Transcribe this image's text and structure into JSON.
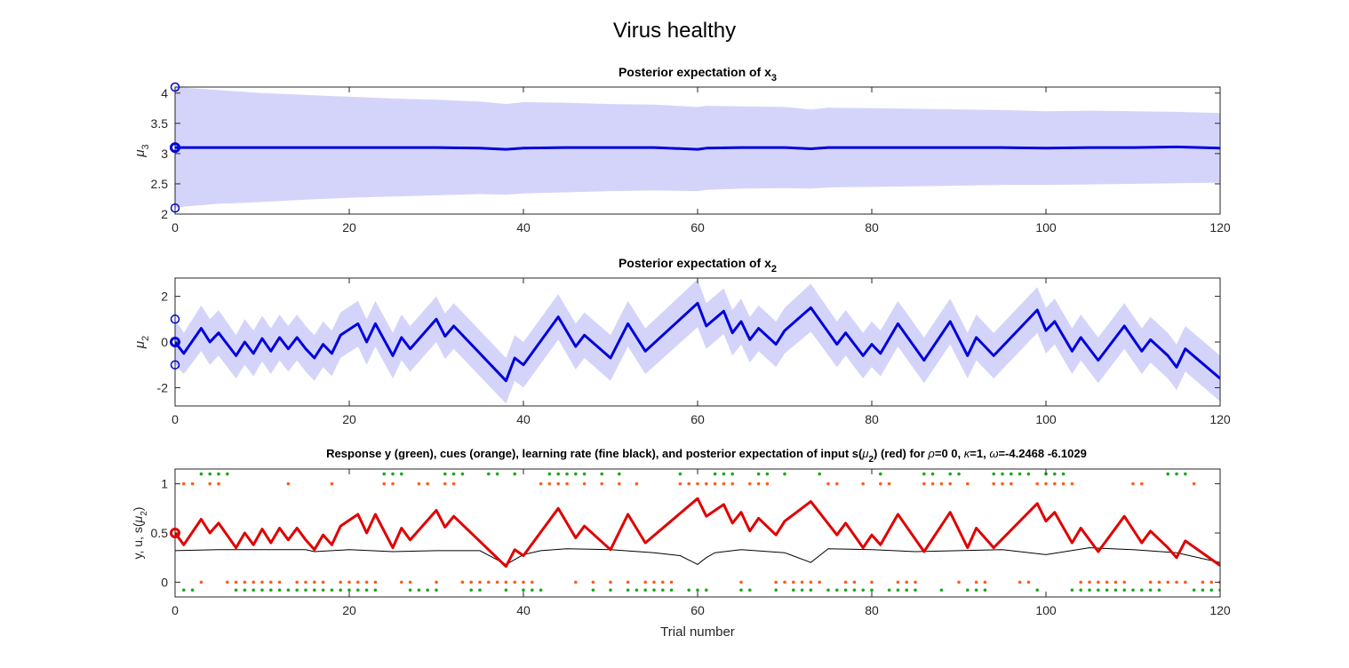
{
  "figure": {
    "title": "Virus healthy"
  },
  "colors": {
    "mean": "#0000dd",
    "band": "#d4d4fb",
    "prediction": "#e00000",
    "learning_rate": "#000000",
    "response": "#1aa81a",
    "cue": "#ff5a1a",
    "axis": "#262626"
  },
  "chart_data": [
    {
      "type": "area",
      "title_main": "Posterior expectation of x",
      "title_sub": "3",
      "ylabel_main": "μ",
      "ylabel_sub": "3",
      "xlim": [
        0,
        120
      ],
      "ylim": [
        2,
        4.1
      ],
      "xticks": [
        0,
        20,
        40,
        60,
        80,
        100,
        120
      ],
      "yticks": [
        2,
        2.5,
        3,
        3.5,
        4
      ],
      "yticklabels": [
        "2",
        "2.5",
        "3",
        "3.5",
        "4"
      ],
      "grid": false,
      "x": [
        0,
        5,
        10,
        15,
        20,
        25,
        30,
        35,
        38,
        40,
        45,
        50,
        55,
        60,
        61,
        65,
        70,
        73,
        75,
        80,
        85,
        90,
        95,
        100,
        105,
        110,
        115,
        120
      ],
      "mean": [
        3.1,
        3.1,
        3.1,
        3.1,
        3.1,
        3.1,
        3.1,
        3.09,
        3.07,
        3.09,
        3.1,
        3.1,
        3.1,
        3.07,
        3.09,
        3.1,
        3.1,
        3.08,
        3.1,
        3.1,
        3.1,
        3.1,
        3.1,
        3.09,
        3.1,
        3.1,
        3.11,
        3.09
      ],
      "band_upper": [
        4.1,
        4.05,
        4.0,
        3.97,
        3.94,
        3.91,
        3.89,
        3.86,
        3.82,
        3.85,
        3.84,
        3.82,
        3.81,
        3.77,
        3.79,
        3.78,
        3.77,
        3.73,
        3.76,
        3.75,
        3.74,
        3.73,
        3.72,
        3.7,
        3.71,
        3.7,
        3.69,
        3.67
      ],
      "band_lower": [
        2.11,
        2.17,
        2.2,
        2.24,
        2.27,
        2.29,
        2.31,
        2.33,
        2.32,
        2.34,
        2.36,
        2.38,
        2.39,
        2.38,
        2.4,
        2.42,
        2.43,
        2.42,
        2.44,
        2.45,
        2.46,
        2.47,
        2.48,
        2.48,
        2.49,
        2.5,
        2.51,
        2.52
      ],
      "prior_markers": [
        4.1,
        3.1,
        2.1
      ]
    },
    {
      "type": "area",
      "title_main": "Posterior expectation of x",
      "title_sub": "2",
      "ylabel_main": "μ",
      "ylabel_sub": "2",
      "xlim": [
        0,
        120
      ],
      "ylim": [
        -2.8,
        2.8
      ],
      "xticks": [
        0,
        20,
        40,
        60,
        80,
        100,
        120
      ],
      "yticks": [
        -2,
        0,
        2
      ],
      "yticklabels": [
        "-2",
        "0",
        "2"
      ],
      "grid": false,
      "x": [
        0,
        1,
        3,
        4,
        5,
        7,
        8,
        9,
        10,
        11,
        12,
        13,
        14,
        15,
        16,
        17,
        18,
        19,
        21,
        22,
        23,
        25,
        26,
        27,
        30,
        31,
        32,
        38,
        39,
        40,
        44,
        46,
        47,
        50,
        52,
        54,
        60,
        61,
        63,
        64,
        65,
        66,
        67,
        69,
        70,
        73,
        76,
        77,
        79,
        80,
        81,
        83,
        86,
        89,
        91,
        92,
        94,
        99,
        100,
        101,
        103,
        104,
        106,
        109,
        111,
        112,
        114,
        115,
        116,
        120
      ],
      "mean": [
        0.0,
        -0.5,
        0.6,
        0.0,
        0.4,
        -0.6,
        0.0,
        -0.5,
        0.15,
        -0.4,
        0.2,
        -0.3,
        0.2,
        -0.3,
        -0.7,
        -0.1,
        -0.5,
        0.3,
        0.8,
        0.0,
        0.8,
        -0.6,
        0.2,
        -0.3,
        1.0,
        0.25,
        0.7,
        -1.7,
        -0.7,
        -1.0,
        1.1,
        -0.2,
        0.3,
        -0.7,
        0.8,
        -0.4,
        1.7,
        0.7,
        1.35,
        0.4,
        0.9,
        0.1,
        0.6,
        -0.1,
        0.5,
        1.5,
        -0.1,
        0.4,
        -0.6,
        -0.1,
        -0.5,
        0.8,
        -0.8,
        0.9,
        -0.6,
        0.2,
        -0.6,
        1.4,
        0.5,
        0.9,
        -0.4,
        0.2,
        -0.8,
        0.7,
        -0.4,
        0.1,
        -0.6,
        -1.1,
        -0.3,
        -1.6
      ],
      "band_upper": [
        1.0,
        0.4,
        1.6,
        1.0,
        1.4,
        0.3,
        1.0,
        0.5,
        1.15,
        0.6,
        1.2,
        0.7,
        1.2,
        0.7,
        0.3,
        0.9,
        0.5,
        1.3,
        1.8,
        1.0,
        1.8,
        0.4,
        1.2,
        0.7,
        2.0,
        1.25,
        1.7,
        -0.7,
        0.3,
        0.0,
        2.1,
        0.8,
        1.3,
        0.3,
        1.8,
        0.6,
        2.75,
        1.7,
        2.35,
        1.4,
        1.9,
        1.1,
        1.6,
        0.9,
        1.5,
        2.55,
        0.9,
        1.4,
        0.4,
        0.9,
        0.5,
        1.8,
        0.2,
        1.9,
        0.4,
        1.2,
        0.4,
        2.4,
        1.5,
        1.9,
        0.6,
        1.2,
        0.2,
        1.7,
        0.6,
        1.1,
        0.4,
        -0.1,
        0.7,
        -0.6
      ],
      "band_lower": [
        -1.0,
        -1.4,
        -0.4,
        -1.0,
        -0.6,
        -1.6,
        -1.0,
        -1.5,
        -0.85,
        -1.4,
        -0.8,
        -1.3,
        -0.8,
        -1.3,
        -1.7,
        -1.1,
        -1.5,
        -0.7,
        -0.2,
        -1.0,
        -0.2,
        -1.6,
        -0.8,
        -1.3,
        0.0,
        -0.75,
        -0.3,
        -2.7,
        -1.7,
        -2.0,
        0.1,
        -1.2,
        -0.7,
        -1.7,
        -0.2,
        -1.4,
        0.65,
        -0.3,
        0.35,
        -0.6,
        -0.1,
        -0.9,
        -0.4,
        -1.1,
        -0.5,
        0.45,
        -1.1,
        -0.6,
        -1.6,
        -1.1,
        -1.5,
        -0.2,
        -1.8,
        -0.1,
        -1.6,
        -0.8,
        -1.6,
        0.4,
        -0.5,
        -0.1,
        -1.4,
        -0.8,
        -1.8,
        -0.3,
        -1.4,
        -0.9,
        -1.6,
        -2.1,
        -1.3,
        -2.6
      ],
      "prior_markers": [
        1.0,
        0.0,
        -1.0
      ]
    },
    {
      "type": "line",
      "title_parts": [
        "Response y (green), cues (orange), learning rate (fine black), and posterior expectation of input s(",
        "μ",
        "2",
        ") (red) for ",
        "ρ",
        "=0  0, ",
        "κ",
        "=1, ",
        "ω",
        "=-4.2468     -6.1029"
      ],
      "xlabel": "Trial number",
      "ylabel_parts": [
        "y, u, s(",
        "μ",
        "2",
        ")"
      ],
      "xlim": [
        0,
        120
      ],
      "ylim": [
        -0.15,
        1.15
      ],
      "xticks": [
        0,
        20,
        40,
        60,
        80,
        100,
        120
      ],
      "yticks": [
        0,
        0.5,
        1
      ],
      "yticklabels": [
        "0",
        "0.5",
        "1"
      ],
      "grid": false,
      "prediction_markers": [
        0.5
      ],
      "responses": [
        0,
        0,
        1,
        1,
        1,
        1,
        0,
        0,
        0,
        0,
        0,
        0,
        0,
        0,
        0,
        0,
        0,
        0,
        0,
        0,
        0,
        0,
        0,
        1,
        1,
        1,
        0,
        0,
        0,
        0,
        1,
        1,
        1,
        0,
        0,
        1,
        1,
        0,
        1,
        0,
        0,
        0,
        1,
        1,
        1,
        1,
        1,
        0,
        1,
        0,
        1,
        0,
        0,
        0,
        0,
        0,
        0,
        1,
        0,
        0,
        0,
        1,
        1,
        1,
        0,
        0,
        1,
        1,
        0,
        1,
        0,
        0,
        0,
        1,
        0,
        0,
        0,
        0,
        0,
        0,
        1,
        0,
        0,
        0,
        0,
        1,
        1,
        0,
        1,
        1,
        0,
        0,
        0,
        1,
        1,
        1,
        1,
        1,
        0,
        1,
        1,
        1,
        0,
        0,
        0,
        0,
        0,
        0,
        0,
        0,
        0,
        0,
        0,
        1,
        1,
        1,
        0,
        0,
        0,
        0
      ],
      "cues": [
        1,
        1,
        0,
        1,
        1,
        0,
        0,
        0,
        0,
        0,
        0,
        0,
        1,
        0,
        0,
        0,
        0,
        1,
        0,
        0,
        0,
        0,
        0,
        1,
        1,
        0,
        0,
        1,
        1,
        0,
        1,
        1,
        0,
        0,
        0,
        0,
        0,
        0,
        0,
        0,
        0,
        1,
        1,
        1,
        1,
        0,
        1,
        0,
        1,
        0,
        1,
        0,
        1,
        0,
        0,
        0,
        0,
        1,
        1,
        1,
        1,
        1,
        1,
        1,
        0,
        1,
        1,
        1,
        0,
        0,
        0,
        0,
        0,
        0,
        1,
        1,
        0,
        0,
        1,
        0,
        1,
        1,
        0,
        0,
        0,
        1,
        1,
        1,
        1,
        0,
        1,
        0,
        0,
        1,
        1,
        1,
        0,
        0,
        1,
        1,
        1,
        1,
        1,
        0,
        0,
        0,
        0,
        0,
        0,
        1,
        1,
        0,
        0,
        0,
        0,
        0,
        1,
        0,
        0,
        0
      ],
      "prediction": {
        "x": [
          0,
          1,
          3,
          4,
          5,
          7,
          8,
          9,
          10,
          11,
          12,
          13,
          14,
          15,
          16,
          17,
          18,
          19,
          21,
          22,
          23,
          25,
          26,
          27,
          30,
          31,
          32,
          38,
          39,
          40,
          44,
          46,
          47,
          50,
          52,
          54,
          60,
          61,
          63,
          64,
          65,
          66,
          67,
          69,
          70,
          73,
          76,
          77,
          79,
          80,
          81,
          83,
          86,
          89,
          91,
          92,
          94,
          99,
          100,
          101,
          103,
          104,
          106,
          109,
          111,
          112,
          114,
          115,
          116,
          120
        ],
        "y": [
          0.5,
          0.38,
          0.64,
          0.5,
          0.6,
          0.35,
          0.5,
          0.38,
          0.54,
          0.4,
          0.55,
          0.43,
          0.55,
          0.43,
          0.33,
          0.48,
          0.38,
          0.57,
          0.69,
          0.5,
          0.69,
          0.35,
          0.55,
          0.43,
          0.73,
          0.56,
          0.67,
          0.16,
          0.33,
          0.27,
          0.75,
          0.45,
          0.57,
          0.33,
          0.69,
          0.4,
          0.85,
          0.67,
          0.79,
          0.6,
          0.71,
          0.52,
          0.65,
          0.48,
          0.62,
          0.82,
          0.48,
          0.6,
          0.35,
          0.48,
          0.38,
          0.69,
          0.31,
          0.71,
          0.35,
          0.55,
          0.35,
          0.8,
          0.62,
          0.71,
          0.4,
          0.55,
          0.31,
          0.67,
          0.4,
          0.52,
          0.35,
          0.25,
          0.42,
          0.17
        ]
      },
      "learning_rate": {
        "x": [
          0,
          5,
          10,
          15,
          16,
          20,
          25,
          30,
          35,
          38,
          40,
          42,
          45,
          50,
          55,
          58,
          60,
          61,
          62,
          65,
          70,
          73,
          75,
          80,
          85,
          90,
          95,
          100,
          105,
          110,
          115,
          120
        ],
        "y": [
          0.32,
          0.33,
          0.33,
          0.33,
          0.31,
          0.33,
          0.31,
          0.32,
          0.32,
          0.18,
          0.28,
          0.32,
          0.34,
          0.33,
          0.3,
          0.27,
          0.18,
          0.25,
          0.3,
          0.33,
          0.3,
          0.2,
          0.34,
          0.33,
          0.31,
          0.32,
          0.33,
          0.28,
          0.35,
          0.33,
          0.3,
          0.2
        ]
      }
    }
  ]
}
